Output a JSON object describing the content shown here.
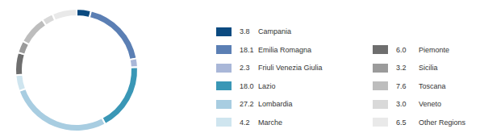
{
  "chart_data": {
    "type": "pie",
    "categories": [
      "Campania",
      "Emilia Romagna",
      "Friuli Venezia Giulia",
      "Lazio",
      "Lombardia",
      "Marche",
      "Piemonte",
      "Sicilia",
      "Toscana",
      "Veneto",
      "Other Regions"
    ],
    "values": [
      3.8,
      18.1,
      2.3,
      18.0,
      27.2,
      4.2,
      6.0,
      3.2,
      7.6,
      3.0,
      6.5
    ],
    "value_labels": [
      "3.8",
      "18.1",
      "2.3",
      "18.0",
      "27.2",
      "4.2",
      "6.0",
      "3.2",
      "7.6",
      "3.0",
      "6.5"
    ],
    "colors": [
      "#0b4a80",
      "#5b7fb4",
      "#a9b7d8",
      "#3a97b6",
      "#a8cde1",
      "#cfe5ef",
      "#6e6e6e",
      "#9b9b9b",
      "#bdbdbd",
      "#d9d9d9",
      "#e9e9e9"
    ],
    "legend": "right"
  }
}
